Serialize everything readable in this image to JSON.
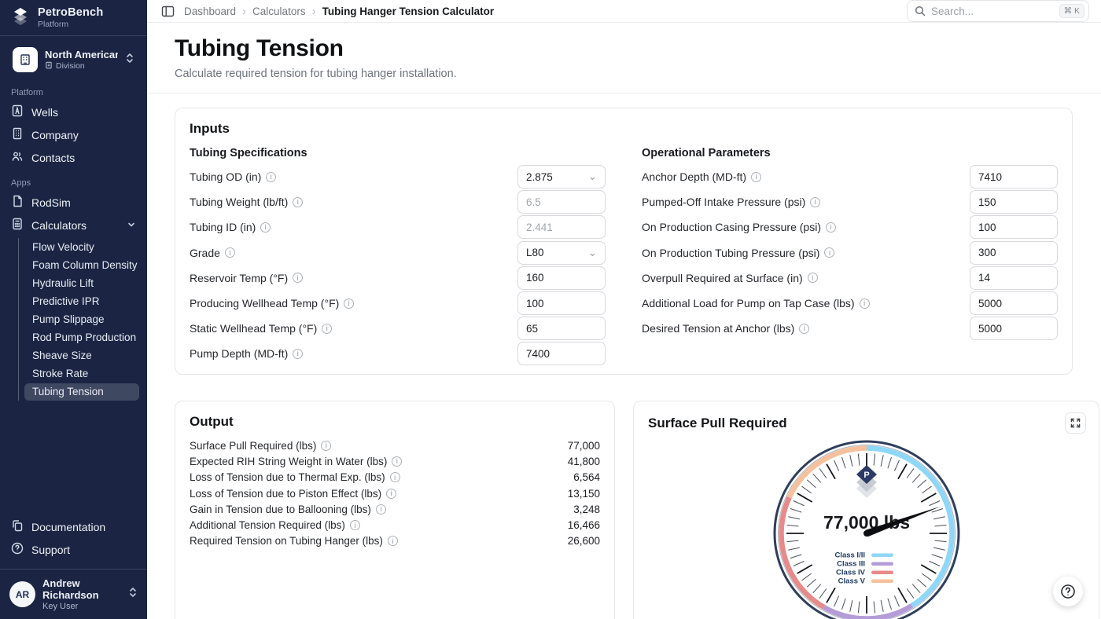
{
  "sidebar": {
    "brand": {
      "name": "PetroBench",
      "subtitle": "Platform"
    },
    "division": {
      "name": "North American Operations",
      "type_label": "Division"
    },
    "platform_section": {
      "label": "Platform",
      "items": [
        {
          "label": "Wells"
        },
        {
          "label": "Company"
        },
        {
          "label": "Contacts"
        }
      ]
    },
    "apps_section": {
      "label": "Apps",
      "rodsim_label": "RodSim",
      "calculators_label": "Calculators",
      "calculator_items": [
        {
          "label": "Flow Velocity"
        },
        {
          "label": "Foam Column Density"
        },
        {
          "label": "Hydraulic Lift"
        },
        {
          "label": "Predictive IPR"
        },
        {
          "label": "Pump Slippage"
        },
        {
          "label": "Rod Pump Production"
        },
        {
          "label": "Sheave Size"
        },
        {
          "label": "Stroke Rate"
        },
        {
          "label": "Tubing Tension"
        }
      ]
    },
    "footer": {
      "documentation_label": "Documentation",
      "support_label": "Support",
      "user": {
        "initials": "AR",
        "name": "Andrew Richardson",
        "role": "Key User"
      }
    }
  },
  "topbar": {
    "breadcrumb": [
      "Dashboard",
      "Calculators",
      "Tubing Hanger Tension Calculator"
    ],
    "search": {
      "placeholder": "Search...",
      "shortcut": "⌘ K"
    }
  },
  "page": {
    "title": "Tubing Tension",
    "subtitle": "Calculate required tension for tubing hanger installation."
  },
  "inputs": {
    "heading": "Inputs",
    "left": {
      "heading": "Tubing Specifications",
      "rows": [
        {
          "label": "Tubing OD (in)",
          "type": "select",
          "value": "2.875"
        },
        {
          "label": "Tubing Weight (lb/ft)",
          "type": "input",
          "placeholder": "6.5"
        },
        {
          "label": "Tubing ID (in)",
          "type": "input",
          "placeholder": "2.441"
        },
        {
          "label": "Grade",
          "type": "select",
          "value": "L80"
        },
        {
          "label": "Reservoir Temp (°F)",
          "type": "input",
          "value": "160"
        },
        {
          "label": "Producing Wellhead Temp (°F)",
          "type": "input",
          "value": "100"
        },
        {
          "label": "Static Wellhead Temp (°F)",
          "type": "input",
          "value": "65"
        },
        {
          "label": "Pump Depth (MD-ft)",
          "type": "input",
          "value": "7400"
        }
      ]
    },
    "right": {
      "heading": "Operational Parameters",
      "rows": [
        {
          "label": "Anchor Depth (MD-ft)",
          "type": "input",
          "value": "7410"
        },
        {
          "label": "Pumped-Off Intake Pressure (psi)",
          "type": "input",
          "value": "150"
        },
        {
          "label": "On Production Casing Pressure (psi)",
          "type": "input",
          "value": "100"
        },
        {
          "label": "On Production Tubing Pressure (psi)",
          "type": "input",
          "value": "300"
        },
        {
          "label": "Overpull Required at Surface (in)",
          "type": "input",
          "value": "14"
        },
        {
          "label": "Additional Load for Pump on Tap Case (lbs)",
          "type": "input",
          "value": "5000"
        },
        {
          "label": "Desired Tension at Anchor (lbs)",
          "type": "input",
          "value": "5000"
        }
      ]
    }
  },
  "output": {
    "heading": "Output",
    "rows": [
      {
        "label": "Surface Pull Required (lbs)",
        "value": "77,000"
      },
      {
        "label": "Expected RIH String Weight in Water (lbs)",
        "value": "41,800"
      },
      {
        "label": "Loss of Tension due to Thermal Exp. (lbs)",
        "value": "6,564"
      },
      {
        "label": "Loss of Tension due to Piston Effect (lbs)",
        "value": "13,150"
      },
      {
        "label": "Gain in Tension due to Ballooning (lbs)",
        "value": "3,248"
      },
      {
        "label": "Additional Tension Required (lbs)",
        "value": "16,466"
      },
      {
        "label": "Required Tension on Tubing Hanger (lbs)",
        "value": "26,600"
      }
    ]
  },
  "gauge": {
    "title": "Surface Pull Required",
    "value": 77000,
    "value_label": "77,000 lbs",
    "needle_angle_deg": -20,
    "rim_color": "#2e3e5c",
    "inner_ring_color": "#aab2bd",
    "needle_color": "#0c0d10",
    "tick_minor_color": "#4a4f57",
    "tick_major_color": "#15171b",
    "legend_text_color": "#1e3a66",
    "arcs": [
      {
        "start": 0,
        "end": 148,
        "color": "#8ed7f8"
      },
      {
        "start": 148,
        "end": 210,
        "color": "#b49cd9"
      },
      {
        "start": 210,
        "end": 295,
        "color": "#e88a8a"
      },
      {
        "start": 295,
        "end": 360,
        "color": "#f6c09c"
      }
    ],
    "legend": [
      {
        "label": "Class I/II",
        "color": "#8ed7f8"
      },
      {
        "label": "Class III",
        "color": "#b49cd9"
      },
      {
        "label": "Class IV",
        "color": "#e88a8a"
      },
      {
        "label": "Class V",
        "color": "#f6c09c"
      }
    ]
  }
}
